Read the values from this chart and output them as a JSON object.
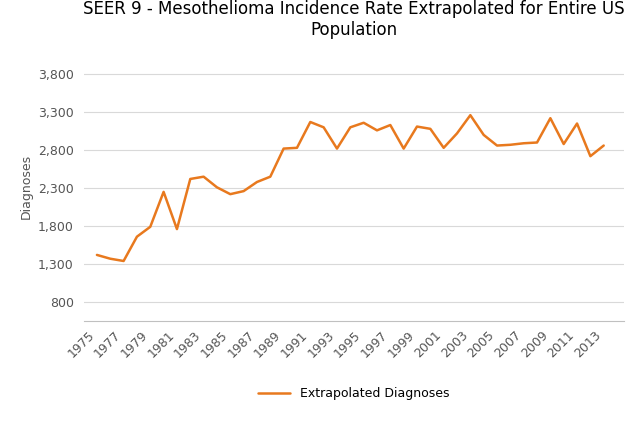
{
  "title": "SEER 9 - Mesothelioma Incidence Rate Extrapolated for Entire US\nPopulation",
  "xlabel": "",
  "ylabel": "Diagnoses",
  "legend_label": "Extrapolated Diagnoses",
  "line_color": "#E8791E",
  "background_color": "#ffffff",
  "years": [
    1975,
    1976,
    1977,
    1978,
    1979,
    1980,
    1981,
    1982,
    1983,
    1984,
    1985,
    1986,
    1987,
    1988,
    1989,
    1990,
    1991,
    1992,
    1993,
    1994,
    1995,
    1996,
    1997,
    1998,
    1999,
    2000,
    2001,
    2002,
    2003,
    2004,
    2005,
    2006,
    2007,
    2008,
    2009,
    2010,
    2011,
    2012,
    2013
  ],
  "values": [
    1420,
    1370,
    1340,
    1660,
    1790,
    2250,
    1760,
    2420,
    2450,
    2310,
    2220,
    2260,
    2380,
    2450,
    2820,
    2830,
    3170,
    3100,
    2820,
    3100,
    3160,
    3060,
    3130,
    2820,
    3110,
    3080,
    2830,
    3020,
    3260,
    3000,
    2860,
    2870,
    2890,
    2900,
    3220,
    2880,
    3150,
    2720,
    2860
  ],
  "yticks": [
    800,
    1300,
    1800,
    2300,
    2800,
    3300,
    3800
  ],
  "ytick_labels": [
    "800",
    "1,300",
    "1,800",
    "2,300",
    "2,800",
    "3,300",
    "3,800"
  ],
  "xtick_years": [
    1975,
    1977,
    1979,
    1981,
    1983,
    1985,
    1987,
    1989,
    1991,
    1993,
    1995,
    1997,
    1999,
    2001,
    2003,
    2005,
    2007,
    2009,
    2011,
    2013
  ],
  "ylim": [
    550,
    4100
  ],
  "xlim": [
    1974.0,
    2014.5
  ],
  "title_fontsize": 12,
  "axis_fontsize": 9,
  "tick_fontsize": 9,
  "legend_fontsize": 9,
  "line_width": 1.8,
  "grid_color": "#d9d9d9",
  "spine_color": "#c0c0c0"
}
